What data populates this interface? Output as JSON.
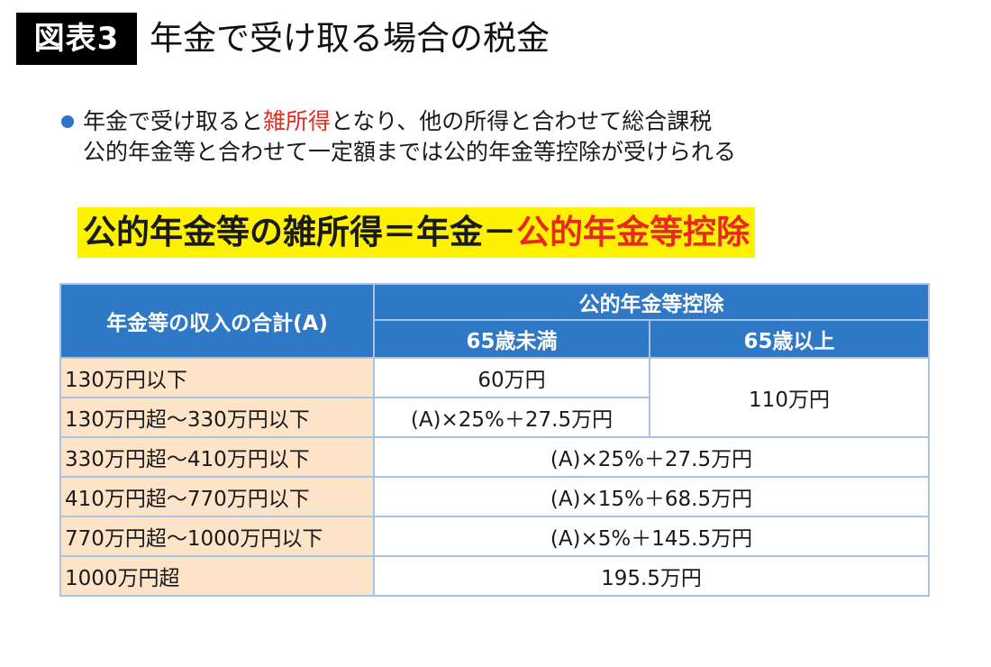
{
  "header": {
    "figure_label": "図表3",
    "title": "年金で受け取る場合の税金"
  },
  "bullets": {
    "line1_pre": "年金で受け取ると",
    "line1_highlight": "雑所得",
    "line1_post": "となり、他の所得と合わせて総合課税",
    "line2": "公的年金等と合わせて一定額までは公的年金等控除が受けられる"
  },
  "formula": {
    "left": "公的年金等の雑所得＝年金－",
    "right": "公的年金等控除"
  },
  "table": {
    "header_income": "年金等の収入の合計(A)",
    "header_deduction": "公的年金等控除",
    "header_under65": "65歳未満",
    "header_over65": "65歳以上",
    "rows": [
      {
        "label": "130万円以下",
        "under65": "60万円",
        "over65": "110万円"
      },
      {
        "label": "130万円超～330万円以下",
        "under65": "(A)×25%＋27.5万円"
      },
      {
        "label": "330万円超～410万円以下",
        "both": "(A)×25%＋27.5万円"
      },
      {
        "label": "410万円超～770万円以下",
        "both": "(A)×15%＋68.5万円"
      },
      {
        "label": "770万円超～1000万円以下",
        "both": "(A)×5%＋145.5万円"
      },
      {
        "label": "1000万円超",
        "both": "195.5万円"
      }
    ]
  },
  "colors": {
    "header_blue": "#2f78c6",
    "label_peach": "#fde3c8",
    "highlight_yellow": "#fff200",
    "accent_red": "#e62b1e",
    "bullet_blue": "#2e74c9"
  }
}
